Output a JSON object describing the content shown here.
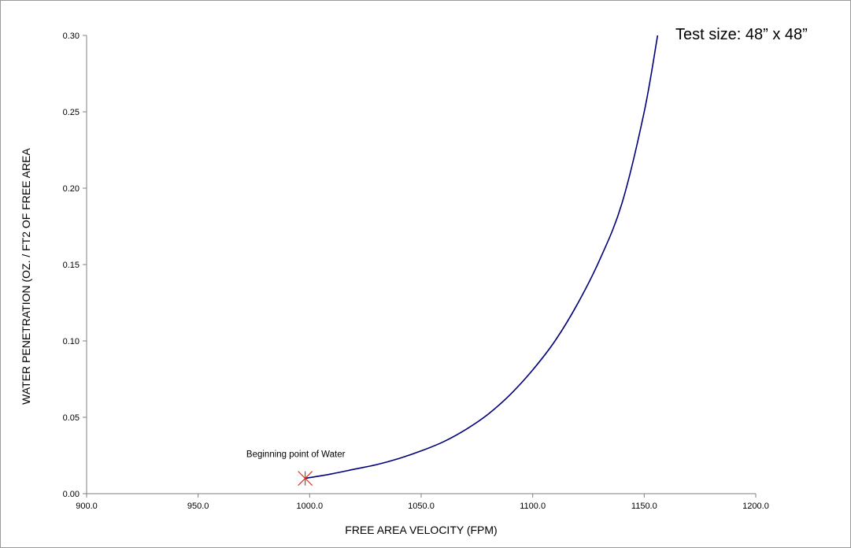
{
  "chart_data": {
    "type": "line",
    "title": "",
    "note": "Test size: 48” x 48”",
    "xlabel": "FREE AREA VELOCITY (FPM)",
    "ylabel": "WATER PENETRATION (OZ. / FT2 OF FREE AREA",
    "xlim": [
      900,
      1200
    ],
    "ylim": [
      0,
      0.3
    ],
    "x_ticks": [
      "900.0",
      "950.0",
      "1000.0",
      "1050.0",
      "1100.0",
      "1150.0",
      "1200.0"
    ],
    "y_ticks": [
      "0.00",
      "0.05",
      "0.10",
      "0.15",
      "0.20",
      "0.25",
      "0.30"
    ],
    "grid": false,
    "series": [
      {
        "color": "#00007a",
        "x": [
          998,
          1010,
          1020,
          1030,
          1040,
          1050,
          1060,
          1070,
          1080,
          1090,
          1100,
          1110,
          1120,
          1130,
          1140,
          1150,
          1156
        ],
        "y": [
          0.01,
          0.013,
          0.016,
          0.019,
          0.023,
          0.028,
          0.034,
          0.042,
          0.052,
          0.065,
          0.081,
          0.1,
          0.124,
          0.153,
          0.19,
          0.25,
          0.3
        ]
      }
    ],
    "annotations": [
      {
        "text": "Beginning point of Water",
        "x": 998,
        "y": 0.01,
        "marker": "star",
        "color": "#c0392b"
      }
    ]
  }
}
